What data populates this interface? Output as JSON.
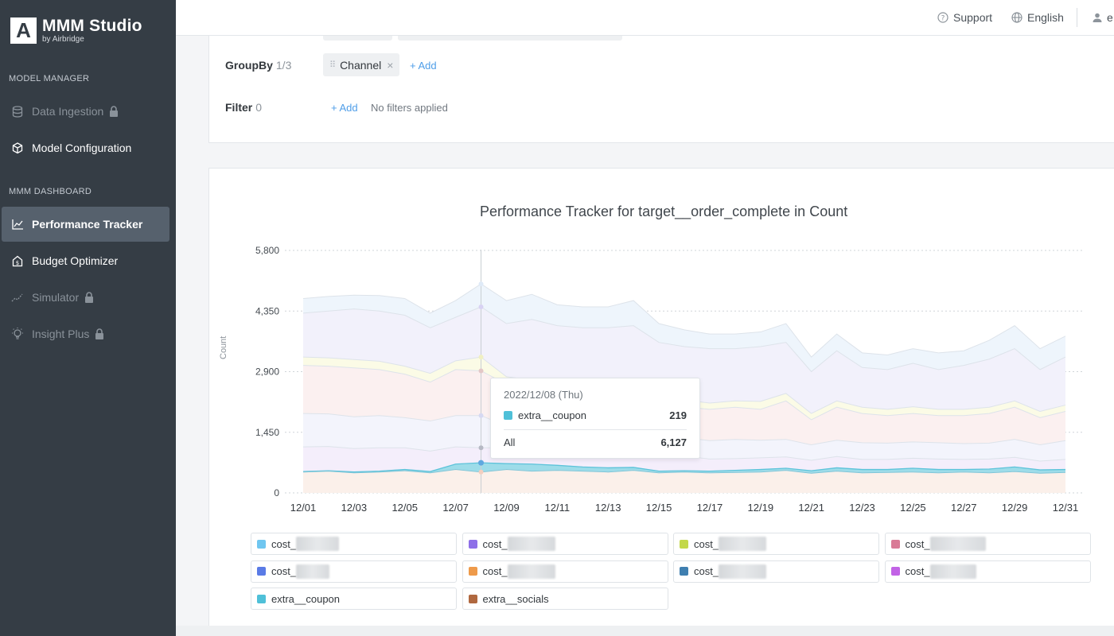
{
  "brand": {
    "mark": "A",
    "name": "MMM Studio",
    "sub": "by Airbridge"
  },
  "sidebar": {
    "sections": [
      {
        "label": "MODEL MANAGER"
      },
      {
        "label": "MMM DASHBOARD"
      }
    ],
    "items": [
      {
        "label": "Data Ingestion",
        "icon": "database-icon",
        "locked": true,
        "state": "disabled"
      },
      {
        "label": "Model Configuration",
        "icon": "cube-icon",
        "locked": false,
        "state": "normal"
      },
      {
        "label": "Performance Tracker",
        "icon": "line-chart-icon",
        "locked": false,
        "state": "active"
      },
      {
        "label": "Budget Optimizer",
        "icon": "budget-house-icon",
        "locked": false,
        "state": "normal"
      },
      {
        "label": "Simulator",
        "icon": "trend-dashed-icon",
        "locked": true,
        "state": "disabled"
      },
      {
        "label": "Insight Plus",
        "icon": "lightbulb-icon",
        "locked": true,
        "state": "disabled"
      }
    ]
  },
  "topbar": {
    "support": "Support",
    "language": "English",
    "user_initial": "e"
  },
  "filters": {
    "groupby_label": "GroupBy",
    "groupby_count": "1/3",
    "groupby_chip": "Channel",
    "add_label": "+ Add",
    "filter_label": "Filter",
    "filter_count": "0",
    "no_filters": "No filters applied"
  },
  "colors": {
    "accent": "#4f9ee8",
    "sidebar_bg": "#353d45",
    "active_item": "#56616d"
  },
  "chart_data": {
    "type": "area",
    "title": "Performance Tracker for target__order_complete in Count",
    "ylabel": "Count",
    "ylim": [
      0,
      5800
    ],
    "yticks": [
      0,
      1450,
      2900,
      4350,
      5800
    ],
    "ytick_labels": [
      "0",
      "1,450",
      "2,900",
      "4,350",
      "5,800"
    ],
    "x": [
      "12/01",
      "12/02",
      "12/03",
      "12/04",
      "12/05",
      "12/06",
      "12/07",
      "12/08",
      "12/09",
      "12/10",
      "12/11",
      "12/12",
      "12/13",
      "12/14",
      "12/15",
      "12/16",
      "12/17",
      "12/18",
      "12/19",
      "12/20",
      "12/21",
      "12/22",
      "12/23",
      "12/24",
      "12/25",
      "12/26",
      "12/27",
      "12/28",
      "12/29",
      "12/30",
      "12/31"
    ],
    "xtick_labels": [
      "12/01",
      "12/03",
      "12/05",
      "12/07",
      "12/09",
      "12/11",
      "12/13",
      "12/15",
      "12/17",
      "12/19",
      "12/21",
      "12/23",
      "12/25",
      "12/27",
      "12/29",
      "12/31"
    ],
    "grid": true,
    "stacked_totals": {
      "s1": [
        500,
        520,
        480,
        500,
        530,
        480,
        560,
        500,
        560,
        520,
        540,
        520,
        500,
        540,
        480,
        500,
        480,
        490,
        500,
        540,
        470,
        520,
        480,
        490,
        500,
        480,
        500,
        480,
        510,
        470,
        490
      ],
      "s2": [
        510,
        530,
        500,
        520,
        560,
        510,
        690,
        720,
        700,
        690,
        660,
        620,
        600,
        610,
        520,
        530,
        520,
        540,
        560,
        590,
        530,
        600,
        560,
        560,
        590,
        560,
        560,
        570,
        620,
        550,
        560
      ],
      "s3": [
        1100,
        1110,
        1060,
        1080,
        1080,
        1000,
        1100,
        1080,
        1080,
        1060,
        1100,
        1020,
        980,
        1040,
        870,
        880,
        810,
        820,
        840,
        860,
        780,
        870,
        800,
        800,
        830,
        810,
        800,
        810,
        850,
        760,
        800
      ],
      "s4": [
        1900,
        1890,
        1820,
        1850,
        1800,
        1720,
        1850,
        1850,
        1600,
        1560,
        1580,
        1500,
        1460,
        1500,
        1300,
        1320,
        1250,
        1280,
        1260,
        1280,
        1150,
        1260,
        1200,
        1190,
        1220,
        1200,
        1180,
        1190,
        1280,
        1150,
        1250
      ],
      "s5": [
        3050,
        3030,
        2990,
        2950,
        2840,
        2650,
        2950,
        2920,
        2600,
        2500,
        2520,
        2450,
        2400,
        2450,
        2100,
        2050,
        2000,
        2050,
        2000,
        2200,
        1750,
        2050,
        1900,
        1850,
        1900,
        1850,
        1850,
        1900,
        2050,
        1800,
        1950
      ],
      "s6": [
        3250,
        3230,
        3190,
        3150,
        3030,
        2860,
        3160,
        3250,
        2780,
        2700,
        2720,
        2630,
        2580,
        2620,
        2280,
        2220,
        2150,
        2200,
        2190,
        2380,
        1900,
        2200,
        2050,
        2000,
        2060,
        2000,
        2000,
        2050,
        2200,
        1950,
        2100
      ],
      "s7": [
        4300,
        4350,
        4400,
        4350,
        4250,
        3950,
        4200,
        4450,
        4050,
        4150,
        4000,
        3950,
        3950,
        4000,
        3600,
        3500,
        3450,
        3450,
        3500,
        3600,
        2900,
        3400,
        3000,
        2950,
        3100,
        2950,
        3050,
        3200,
        3450,
        2950,
        3250
      ],
      "s8": [
        4650,
        4700,
        4730,
        4720,
        4650,
        4300,
        4600,
        5000,
        4600,
        4750,
        4500,
        4450,
        4450,
        4600,
        4050,
        3900,
        3800,
        3800,
        3850,
        4050,
        3250,
        3800,
        3350,
        3300,
        3450,
        3350,
        3400,
        3650,
        4000,
        3450,
        3750
      ]
    },
    "hover": {
      "date": "2022/12/08 (Thu)",
      "series": "extra__coupon",
      "value": "219",
      "total_label": "All",
      "total": "6,127"
    },
    "legend": [
      {
        "label": "cost_",
        "color": "#6fc6f0",
        "blurred": true
      },
      {
        "label": "cost_",
        "color": "#8e6fe8",
        "blurred": true
      },
      {
        "label": "cost_",
        "color": "#c3d84a",
        "blurred": true
      },
      {
        "label": "cost_",
        "color": "#d97a96",
        "blurred": true
      },
      {
        "label": "cost_",
        "color": "#5a7be6",
        "blurred": true
      },
      {
        "label": "cost_",
        "color": "#ee9a4a",
        "blurred": true
      },
      {
        "label": "cost_",
        "color": "#3f7fb0",
        "blurred": true
      },
      {
        "label": "cost_",
        "color": "#c263e6",
        "blurred": true
      },
      {
        "label": "extra__coupon",
        "color": "#4fc0d8",
        "blurred": false
      },
      {
        "label": "extra__socials",
        "color": "#b0683f",
        "blurred": false
      }
    ]
  }
}
